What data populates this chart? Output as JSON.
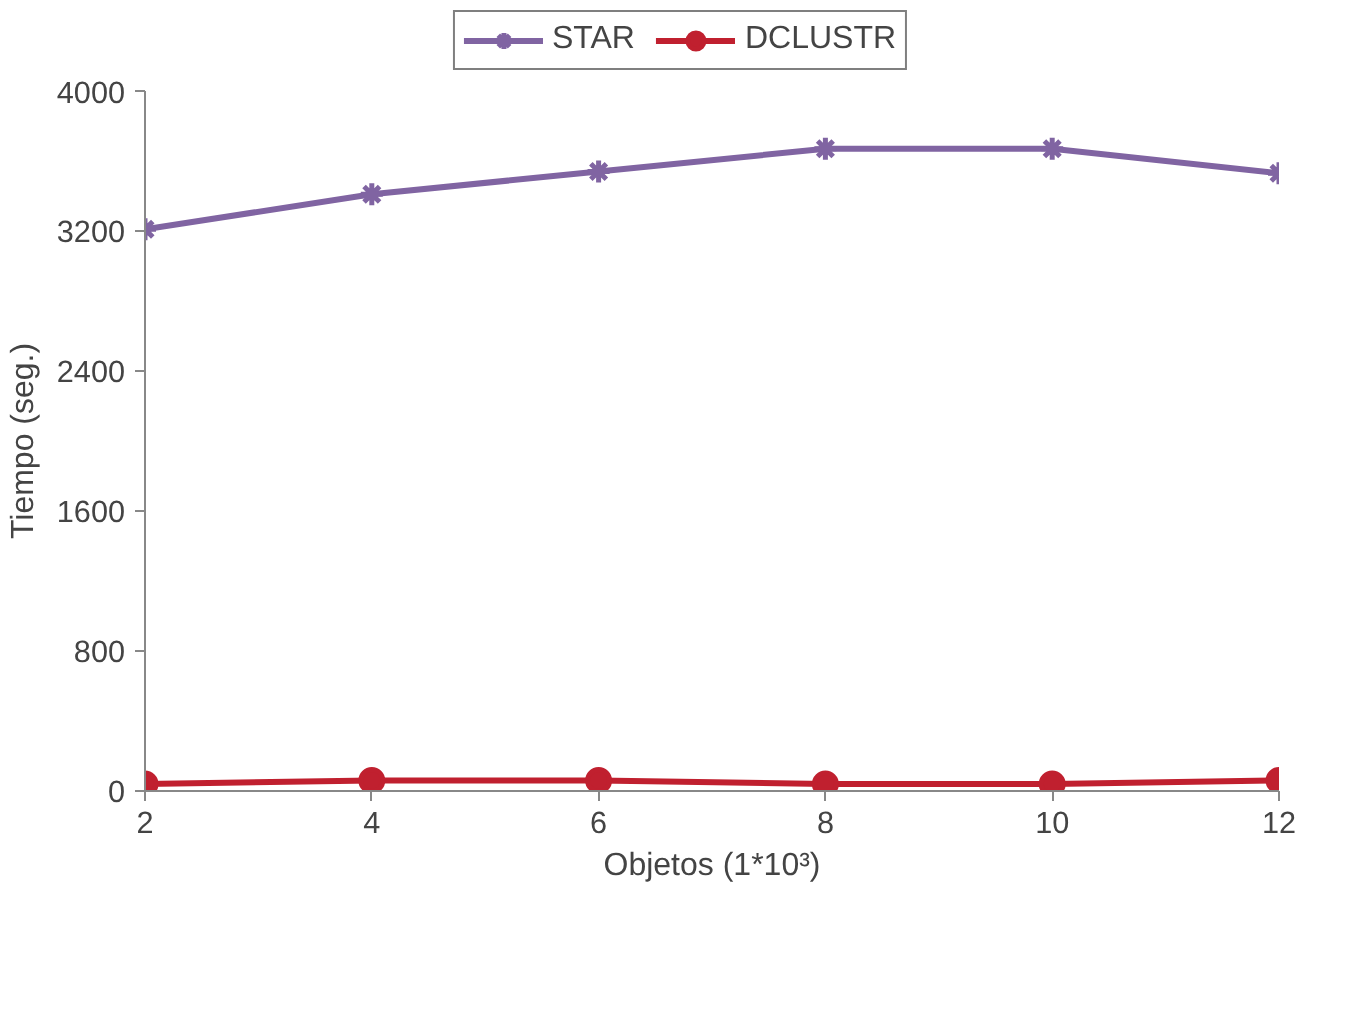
{
  "chart_data": {
    "type": "line",
    "xlabel": "Objetos (1*10³)",
    "ylabel": "Tiempo (seg.)",
    "x": [
      2,
      4,
      6,
      8,
      10,
      12
    ],
    "series": [
      {
        "name": "STAR",
        "color": "#8064a2",
        "marker": "cross",
        "values": [
          3210,
          3410,
          3540,
          3670,
          3670,
          3530
        ]
      },
      {
        "name": "DCLUSTR",
        "color": "#c0202f",
        "marker": "circle",
        "values": [
          40,
          60,
          60,
          40,
          40,
          60
        ]
      }
    ],
    "xlim": [
      2,
      12
    ],
    "xticks": [
      2,
      4,
      6,
      8,
      10,
      12
    ],
    "ylim": [
      0,
      4000
    ],
    "yticks": [
      0,
      800,
      1600,
      2400,
      3200,
      4000
    ],
    "grid": false,
    "legend": "top",
    "line_style": "solid"
  }
}
